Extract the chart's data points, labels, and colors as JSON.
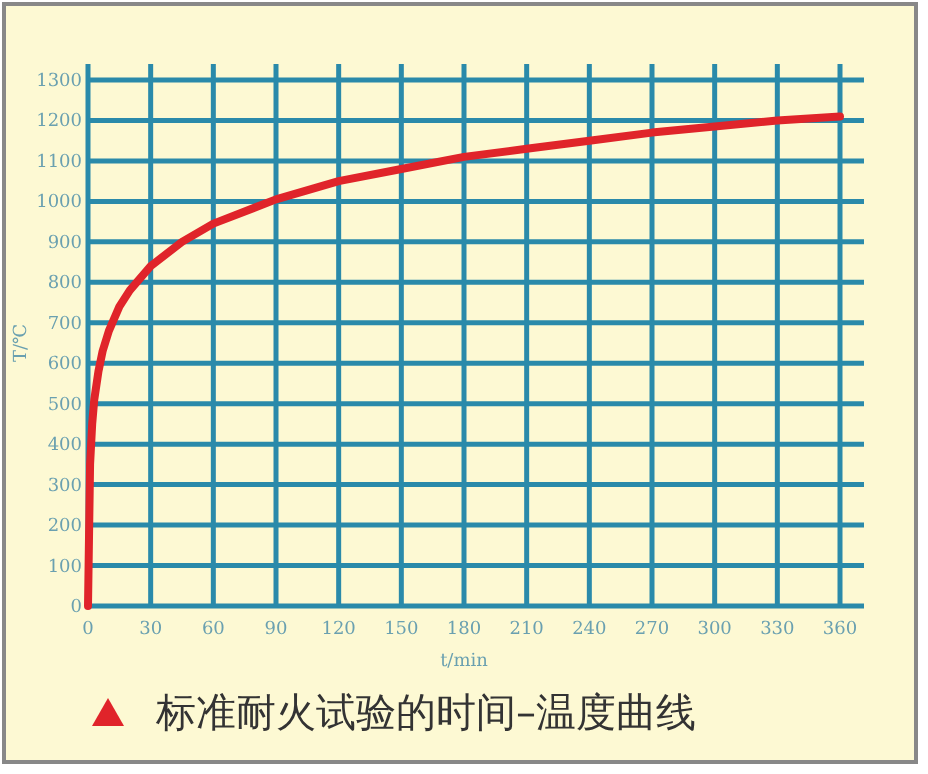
{
  "chart_data": {
    "type": "line",
    "title": "标准耐火试验的时间–温度曲线",
    "xlabel": "t/min",
    "ylabel": "T/℃",
    "x": [
      0,
      1,
      2,
      3,
      5,
      7,
      10,
      15,
      20,
      30,
      45,
      60,
      90,
      120,
      150,
      180,
      210,
      240,
      270,
      300,
      330,
      360
    ],
    "series": [
      {
        "color": "#e0242a",
        "values": [
          0,
          350,
          450,
          510,
          580,
          630,
          680,
          740,
          780,
          840,
          900,
          945,
          1005,
          1050,
          1080,
          1110,
          1130,
          1150,
          1170,
          1185,
          1200,
          1210
        ]
      }
    ],
    "xlim": [
      0,
      360
    ],
    "xticks": [
      0,
      30,
      60,
      90,
      120,
      150,
      180,
      210,
      240,
      270,
      300,
      330,
      360
    ],
    "ylim": [
      0,
      1300
    ],
    "yticks": [
      0,
      100,
      200,
      300,
      400,
      500,
      600,
      700,
      800,
      900,
      1000,
      1100,
      1200,
      1300
    ],
    "grid": true,
    "marker": "none",
    "line_style": "solid"
  }
}
